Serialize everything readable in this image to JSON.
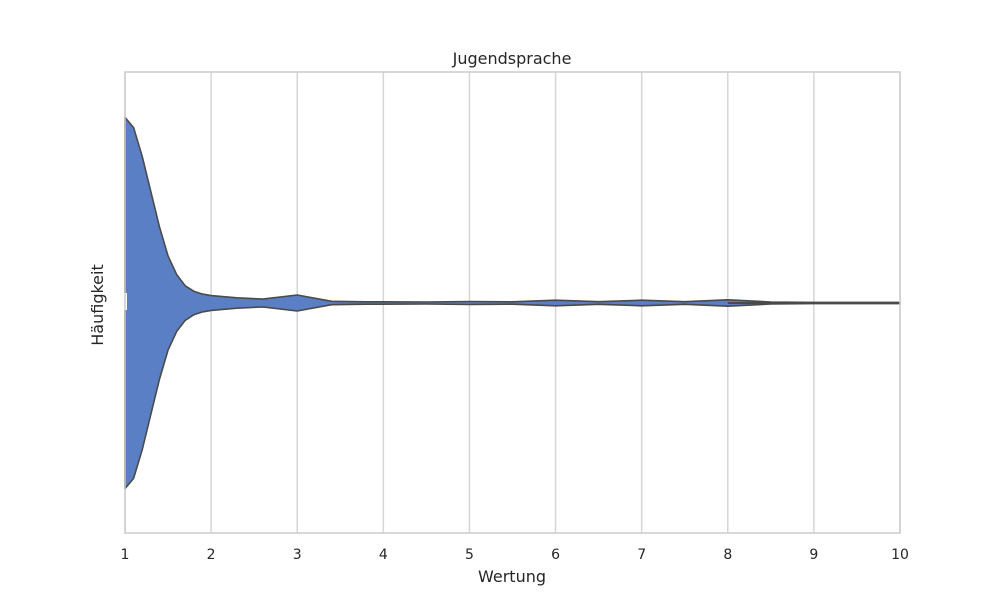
{
  "chart_data": {
    "type": "violin",
    "title": "Jugendsprache",
    "xlabel": "Wertung",
    "ylabel": "Häufigkeit",
    "xlim": [
      1,
      10
    ],
    "xticks": [
      "1",
      "2",
      "3",
      "4",
      "5",
      "6",
      "7",
      "8",
      "9",
      "10"
    ],
    "grid": "vertical",
    "orientation": "horizontal",
    "fill_color": "#5a7fc4",
    "edge_color": "#4a4a4a",
    "density": {
      "x": [
        1.0,
        1.1,
        1.2,
        1.3,
        1.4,
        1.5,
        1.6,
        1.7,
        1.8,
        1.9,
        2.0,
        2.3,
        2.6,
        3.0,
        3.4,
        3.8,
        4.5,
        5.0,
        5.5,
        6.0,
        6.5,
        7.0,
        7.5,
        8.0,
        8.5,
        9.0,
        9.5,
        10.0
      ],
      "width": [
        1.0,
        0.945,
        0.79,
        0.6,
        0.41,
        0.25,
        0.15,
        0.09,
        0.06,
        0.045,
        0.037,
        0.025,
        0.018,
        0.04,
        0.006,
        0.003,
        0.002,
        0.005,
        0.003,
        0.012,
        0.004,
        0.012,
        0.004,
        0.014,
        0.002,
        0.0,
        0.0,
        0.0
      ]
    }
  }
}
